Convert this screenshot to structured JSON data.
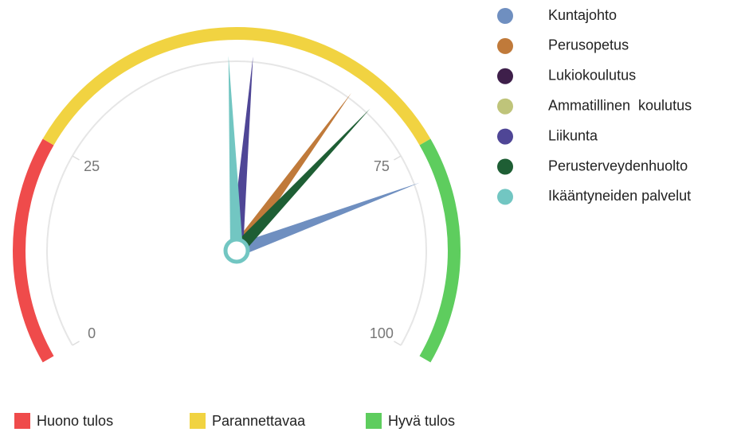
{
  "chart_data": {
    "type": "gauge",
    "min": 0,
    "max": 100,
    "ticks": [
      0,
      25,
      75,
      100
    ],
    "bands": [
      {
        "name": "Huono tulos",
        "color": "#ef4b4b",
        "from": 0,
        "to": 25
      },
      {
        "name": "Parannettavaa",
        "color": "#f1d341",
        "from": 25,
        "to": 75
      },
      {
        "name": "Hyvä tulos",
        "color": "#5ecd5e",
        "from": 75,
        "to": 100
      }
    ],
    "series": [
      {
        "name": "Kuntajohto",
        "color": "#6f8fc0",
        "value": 79
      },
      {
        "name": "Perusopetus",
        "color": "#c07a3a",
        "value": 65
      },
      {
        "name": "Lukiokoulutus",
        "color": "#3e1f4a",
        "value": null
      },
      {
        "name": "Ammatillinen  koulutus",
        "color": "#bfc47a",
        "value": null
      },
      {
        "name": "Liikunta",
        "color": "#4f4696",
        "value": 52
      },
      {
        "name": "Perusterveydenhuolto",
        "color": "#1e5e34",
        "value": 68
      },
      {
        "name": "Ikääntyneiden palvelut",
        "color": "#72c6c2",
        "value": 49
      }
    ]
  }
}
